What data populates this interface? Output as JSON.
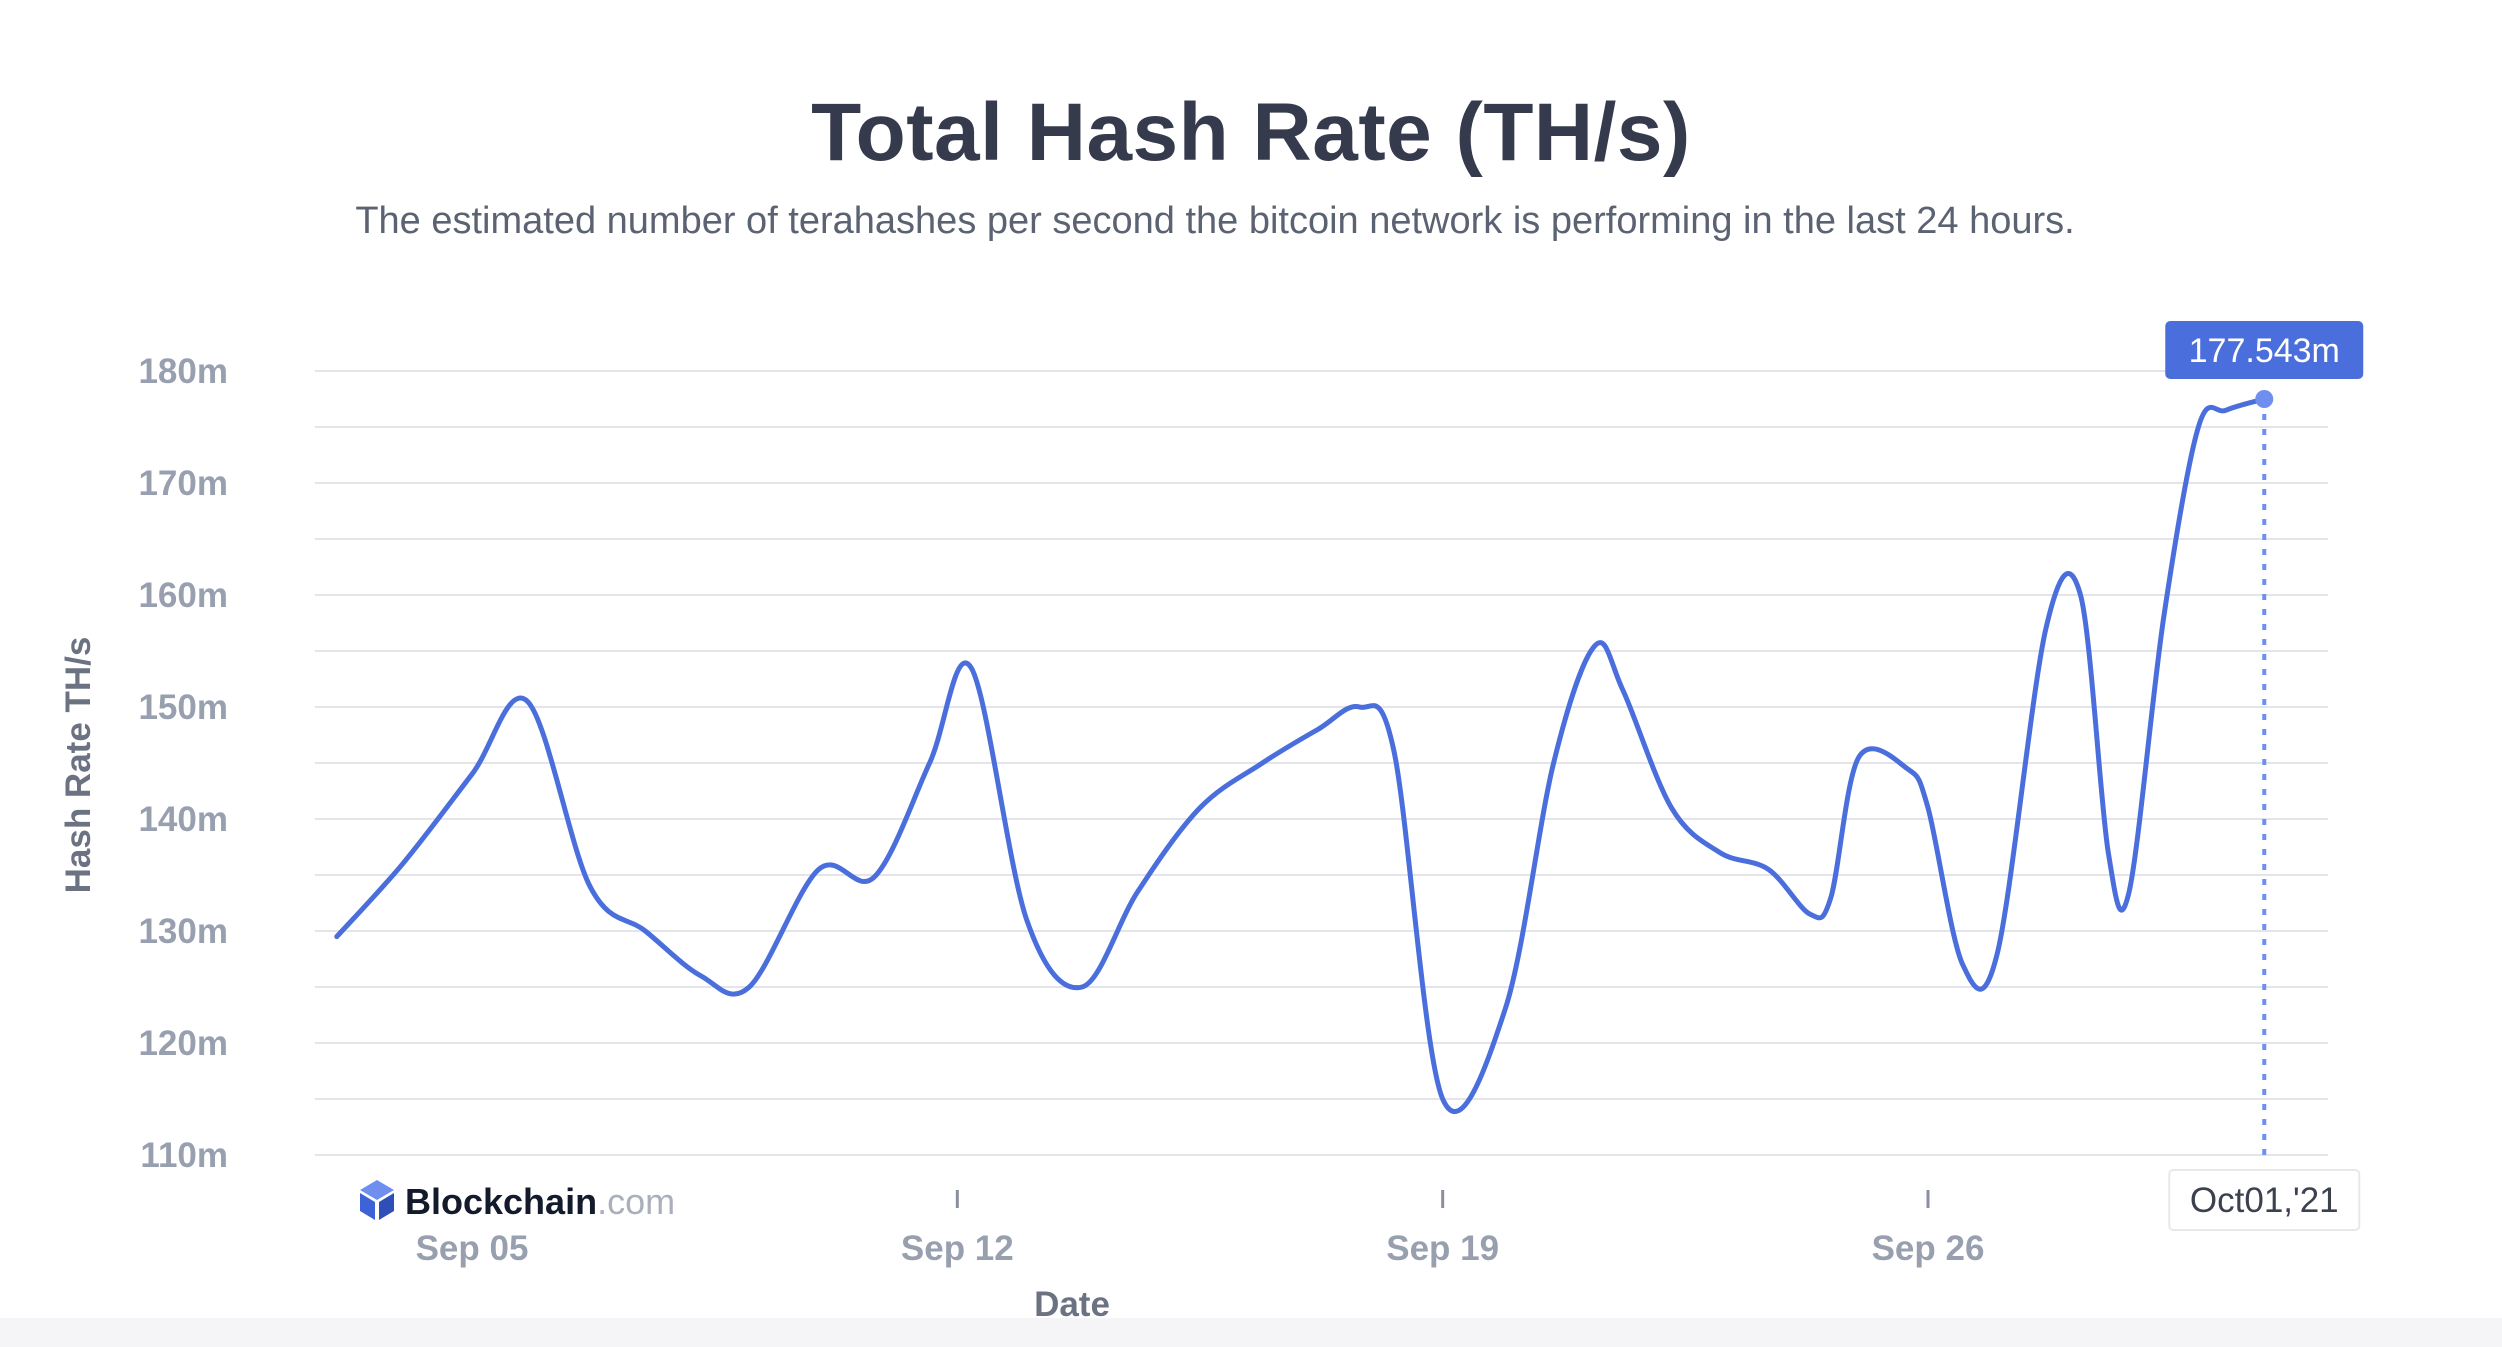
{
  "chart_data": {
    "type": "line",
    "title": "Total Hash Rate (TH/s)",
    "subtitle": "The estimated number of terahashes per second the bitcoin network is performing in the last 24 hours.",
    "xlabel": "Date",
    "ylabel": "Hash Rate TH/s",
    "ylim": [
      110,
      180
    ],
    "y_ticks": [
      "180m",
      "170m",
      "160m",
      "150m",
      "140m",
      "130m",
      "120m",
      "110m"
    ],
    "x_ticks": [
      "Sep 05",
      "Sep 12",
      "Sep 19",
      "Sep 26"
    ],
    "x_tick_days": [
      5,
      12,
      19,
      26
    ],
    "grid": true,
    "series": [
      {
        "color": "#4a6fdc",
        "x": [
          3.05,
          4.0,
          5.0,
          5.8,
          6.7,
          7.5,
          8.3,
          9.0,
          10.0,
          10.8,
          11.6,
          12.2,
          13.0,
          13.8,
          14.6,
          15.5,
          16.4,
          17.2,
          17.8,
          18.3,
          19.0,
          19.9,
          20.6,
          21.2,
          21.6,
          22.3,
          23.0,
          23.7,
          24.3,
          24.6,
          25.0,
          25.7,
          26.0,
          26.5,
          27.0,
          27.7,
          28.2,
          28.6,
          28.9,
          29.4,
          29.9,
          30.3,
          30.85
        ],
        "values": [
          129.5,
          136,
          144,
          150.5,
          134,
          130,
          126,
          125,
          135.5,
          134.8,
          145,
          153.5,
          131,
          125,
          133.5,
          141,
          145,
          148,
          150,
          146,
          115,
          123,
          145,
          155.5,
          151.5,
          141,
          137,
          135.5,
          131.5,
          133,
          145.5,
          144.5,
          141,
          127,
          128,
          157,
          160,
          137,
          133.5,
          158,
          175,
          176.5,
          177.5
        ]
      }
    ],
    "last_point": {
      "label": "177.543m",
      "date_label": "Oct01,'21"
    }
  },
  "brand": {
    "name_bold": "Blockchain",
    "name_light": ".com",
    "accent": "#4a6fdc"
  }
}
